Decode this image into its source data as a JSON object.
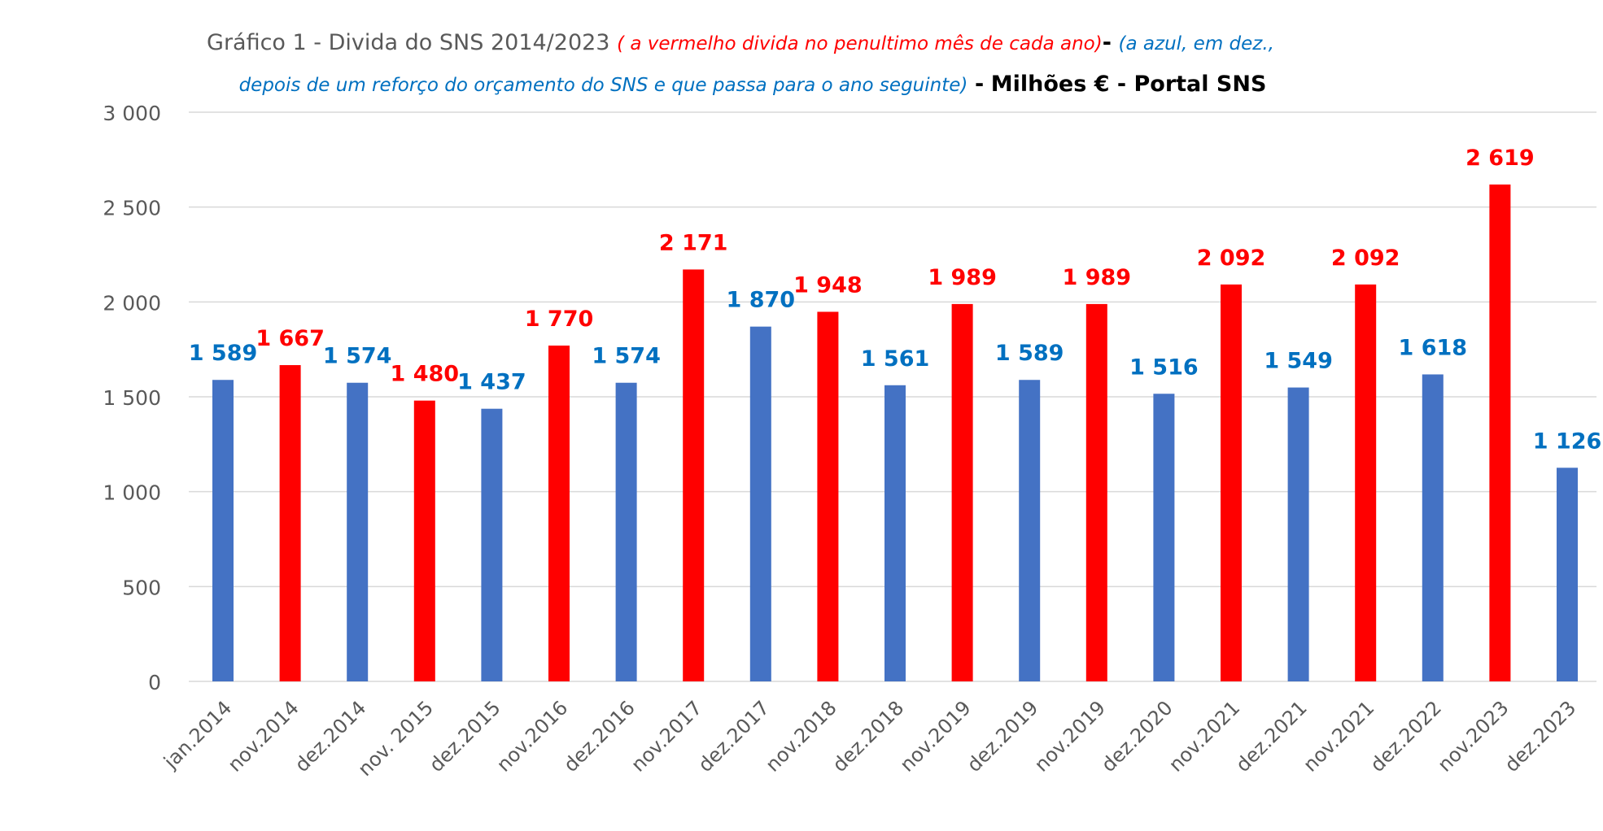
{
  "colors": {
    "blue": "#4472c4",
    "red": "#ff0000",
    "blue_label": "#0070c0",
    "red_label": "#ff0000",
    "grid": "#d9d9d9",
    "axis_text": "#595959"
  },
  "title": {
    "main": "Gráfico  1 - Divida  do SNS 2014/2023",
    "red_note": "( a vermelho divida no penultimo mês de cada ano)",
    "dash1": "-",
    "blue_note_1": "(a azul, em dez.,",
    "blue_note_2": "depois de um reforço do orçamento do SNS e que passa  para o ano seguinte)",
    "dash2": "-",
    "unit": "Milhões € - Portal SNS"
  },
  "chart_data": {
    "type": "bar",
    "title": "Gráfico  1 - Divida  do SNS 2014/2023",
    "ylim": [
      0,
      3000
    ],
    "yticks": [
      0,
      500,
      1000,
      1500,
      2000,
      2500,
      3000
    ],
    "ytick_labels": [
      "0",
      "500",
      "1 000",
      "1 500",
      "2 000",
      "2 500",
      "3 000"
    ],
    "grid": true,
    "categories": [
      "jan.2014",
      "nov.2014",
      "dez.2014",
      "nov. 2015",
      "dez.2015",
      "nov.2016",
      "dez.2016",
      "nov.2017",
      "dez.2017",
      "nov.2018",
      "dez.2018",
      "nov.2019",
      "dez.2019",
      "nov.2019",
      "dez.2020",
      "nov.2021",
      "dez.2021",
      "nov.2021",
      "dez.2022",
      "nov.2023",
      "dez.2023"
    ],
    "values": [
      1589,
      1667,
      1574,
      1480,
      1437,
      1770,
      1574,
      2171,
      1870,
      1948,
      1561,
      1989,
      1589,
      1989,
      1516,
      2092,
      1549,
      2092,
      1618,
      2619,
      1126
    ],
    "value_labels": [
      "1 589",
      "1 667",
      "1 574",
      "1 480",
      "1 437",
      "1 770",
      "1 574",
      "2 171",
      "1 870",
      "1 948",
      "1 561",
      "1 989",
      "1 589",
      "1 989",
      "1 516",
      "2 092",
      "1 549",
      "2 092",
      "1 618",
      "2 619",
      "1 126"
    ],
    "bar_colors": [
      "blue",
      "red",
      "blue",
      "red",
      "blue",
      "red",
      "blue",
      "red",
      "blue",
      "red",
      "blue",
      "red",
      "blue",
      "red",
      "blue",
      "red",
      "blue",
      "red",
      "blue",
      "red",
      "blue"
    ]
  }
}
